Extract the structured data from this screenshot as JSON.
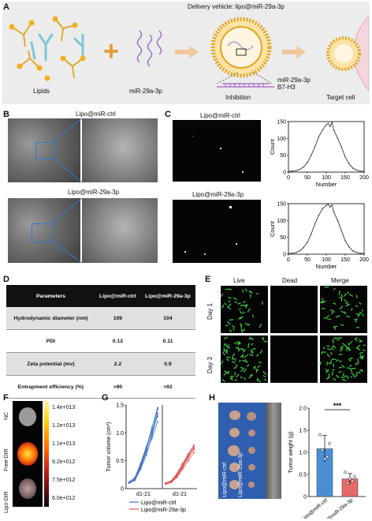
{
  "panel_letters": [
    "A",
    "B",
    "C",
    "D",
    "E",
    "F",
    "G",
    "H"
  ],
  "A": {
    "title": "Delivery vehicle: lipo@miR-29a-3p",
    "labels": [
      "Lipids",
      "miR-29a-3p",
      "Inhibition",
      "Target cell"
    ],
    "inhibition_labels": [
      "miR-29a-3p",
      "B7-H3"
    ]
  },
  "B": {
    "top_title": "Lipo@miR-ctrl",
    "bottom_title": "Lipo@miR-29a-3p"
  },
  "C": {
    "top_title": "Lipo@miR-ctrl",
    "bottom_title": "Lipo@miR-29a-3p",
    "chart_data": [
      {
        "type": "line",
        "xlabel": "Number",
        "ylabel": "Count",
        "xlim": [
          0,
          200
        ],
        "ylim": [
          0,
          150
        ],
        "xticks": [
          0,
          50,
          100,
          150,
          200
        ],
        "yticks": [
          0,
          50,
          100,
          150
        ],
        "x": [
          0,
          10,
          20,
          30,
          40,
          50,
          60,
          70,
          80,
          90,
          100,
          105,
          110,
          115,
          120,
          130,
          140,
          150,
          160,
          170,
          180,
          190,
          200
        ],
        "values": [
          2,
          3,
          4,
          8,
          15,
          28,
          50,
          75,
          105,
          125,
          140,
          145,
          135,
          148,
          125,
          100,
          75,
          45,
          25,
          12,
          6,
          3,
          2
        ]
      },
      {
        "type": "line",
        "xlabel": "Number",
        "ylabel": "Count",
        "xlim": [
          0,
          200
        ],
        "ylim": [
          0,
          150
        ],
        "xticks": [
          0,
          50,
          100,
          150,
          200
        ],
        "yticks": [
          0,
          50,
          100,
          150
        ],
        "x": [
          0,
          10,
          20,
          30,
          40,
          50,
          60,
          70,
          80,
          90,
          100,
          105,
          110,
          115,
          120,
          130,
          140,
          150,
          160,
          170,
          180,
          190,
          200
        ],
        "values": [
          2,
          3,
          5,
          10,
          20,
          35,
          60,
          90,
          115,
          135,
          145,
          148,
          140,
          146,
          125,
          100,
          70,
          40,
          22,
          10,
          5,
          3,
          2
        ]
      }
    ]
  },
  "D": {
    "headers": [
      "Parameters",
      "Lipo@miR-ctrl",
      "Lipo@miR-29a-3p"
    ],
    "rows": [
      [
        "Hydrodynamic diameter (nm)",
        "109",
        "104"
      ],
      [
        "PDI",
        "0.12",
        "0.11"
      ],
      [
        "Zeta potential (mv)",
        "2.2",
        "0.9"
      ],
      [
        "Entrapment efficiency (%)",
        ">90",
        ">92"
      ]
    ]
  },
  "E": {
    "columns": [
      "Live",
      "Dead",
      "Merge"
    ],
    "rows": [
      "Day 1",
      "Day 3"
    ]
  },
  "F": {
    "rows": [
      "NC",
      "Free-DIR",
      "Lipo-DIR"
    ],
    "colorbar_ticks": [
      "1.4e+013",
      "1.2e+013",
      "1.1e+013",
      "9.2e+012",
      "7.5e+012",
      "6.0e+012"
    ]
  },
  "G": {
    "chart_data": {
      "type": "line",
      "ylabel": "Tumor volume (cm³)",
      "ylim": [
        0,
        1.5
      ],
      "yticks": [
        "0",
        "0.5",
        "1.0",
        "1.5"
      ],
      "xlabel_left": "d1-21",
      "xlabel_right": "d1-21",
      "legend": [
        {
          "name": "Lipo@miR-ctrl",
          "color": "#3a6fc4"
        },
        {
          "name": "Lipo@miR-29a-3p",
          "color": "#e05454"
        }
      ],
      "series_ctrl": [
        [
          0.1,
          0.15,
          0.35,
          0.6,
          0.95,
          1.35
        ],
        [
          0.1,
          0.18,
          0.4,
          0.7,
          1.0,
          1.42
        ],
        [
          0.12,
          0.2,
          0.45,
          0.75,
          1.05,
          1.3
        ],
        [
          0.1,
          0.16,
          0.38,
          0.65,
          0.9,
          1.2
        ],
        [
          0.11,
          0.17,
          0.42,
          0.72,
          1.1,
          1.45
        ]
      ],
      "series_mir": [
        [
          0.08,
          0.12,
          0.22,
          0.38,
          0.55,
          0.72
        ],
        [
          0.09,
          0.13,
          0.25,
          0.42,
          0.6,
          0.75
        ],
        [
          0.08,
          0.11,
          0.2,
          0.35,
          0.5,
          0.65
        ],
        [
          0.1,
          0.14,
          0.27,
          0.45,
          0.62,
          0.78
        ],
        [
          0.09,
          0.12,
          0.24,
          0.4,
          0.58,
          0.7
        ]
      ]
    }
  },
  "H": {
    "photo_labels": [
      "Lipo@miR-ctrl",
      "Lipo@miR-29a-3p"
    ],
    "chart_data": {
      "type": "bar",
      "ylabel": "Tumor weight (g)",
      "ylim": [
        0,
        2.0
      ],
      "yticks": [
        "0",
        "0.5",
        "1.0",
        "1.5",
        "2.0"
      ],
      "categories": [
        "Lipo@miR-ctrl",
        "Lipo@miR-29a-3p"
      ],
      "values": [
        1.08,
        0.4
      ],
      "errors": [
        0.3,
        0.12
      ],
      "colors": [
        "#4a8fd6",
        "#e66a6a"
      ],
      "points": [
        [
          1.4,
          1.05,
          0.85,
          0.9,
          1.2
        ],
        [
          0.55,
          0.3,
          0.4,
          0.35,
          0.45
        ]
      ],
      "significance": "***"
    }
  }
}
